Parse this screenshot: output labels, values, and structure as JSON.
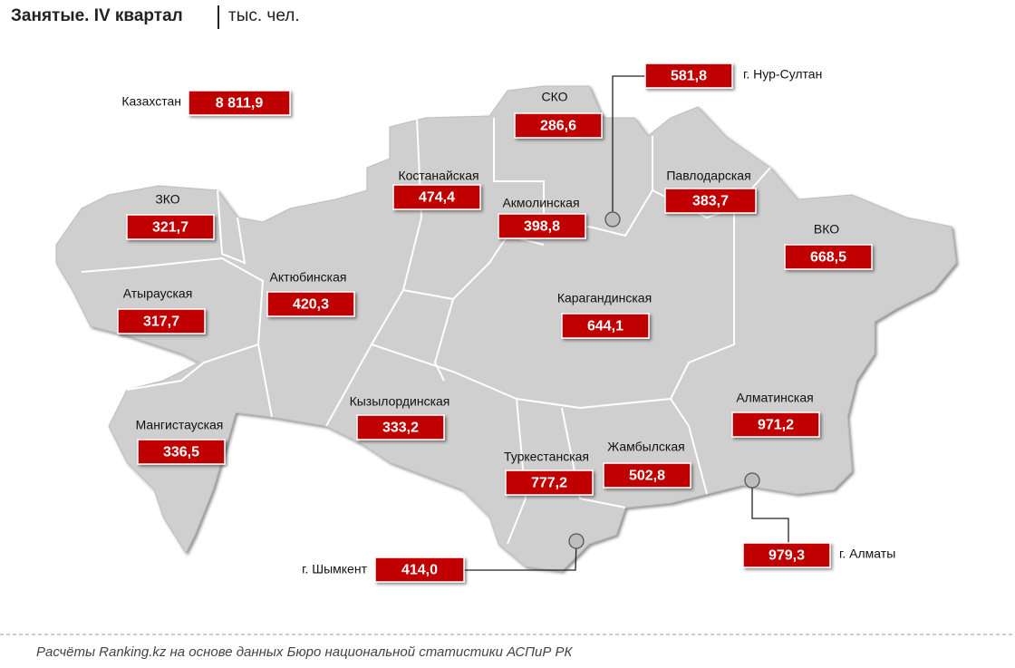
{
  "header": {
    "title": "Занятые. IV квартал",
    "unit": "тыс. чел."
  },
  "regions": [
    {
      "name": "Казахстан",
      "value": "8 811,9"
    },
    {
      "name": "СКО",
      "value": "286,6"
    },
    {
      "name": "г. Нур-Султан",
      "value": "581,8"
    },
    {
      "name": "Костанайская",
      "value": "474,4"
    },
    {
      "name": "Акмолинская",
      "value": "398,8"
    },
    {
      "name": "Павлодарская",
      "value": "383,7"
    },
    {
      "name": "ЗКО",
      "value": "321,7"
    },
    {
      "name": "ВКО",
      "value": "668,5"
    },
    {
      "name": "Актюбинская",
      "value": "420,3"
    },
    {
      "name": "Атырауская",
      "value": "317,7"
    },
    {
      "name": "Карагандинская",
      "value": "644,1"
    },
    {
      "name": "Кызылординская",
      "value": "333,2"
    },
    {
      "name": "Мангистауская",
      "value": "336,5"
    },
    {
      "name": "Алматинская",
      "value": "971,2"
    },
    {
      "name": "Туркестанская",
      "value": "777,2"
    },
    {
      "name": "Жамбылская",
      "value": "502,8"
    },
    {
      "name": "г. Шымкент",
      "value": "414,0"
    },
    {
      "name": "г. Алматы",
      "value": "979,3"
    }
  ],
  "footer": "Расчёты Ranking.kz на основе данных Бюро национальной статистики АСПиР РК"
}
